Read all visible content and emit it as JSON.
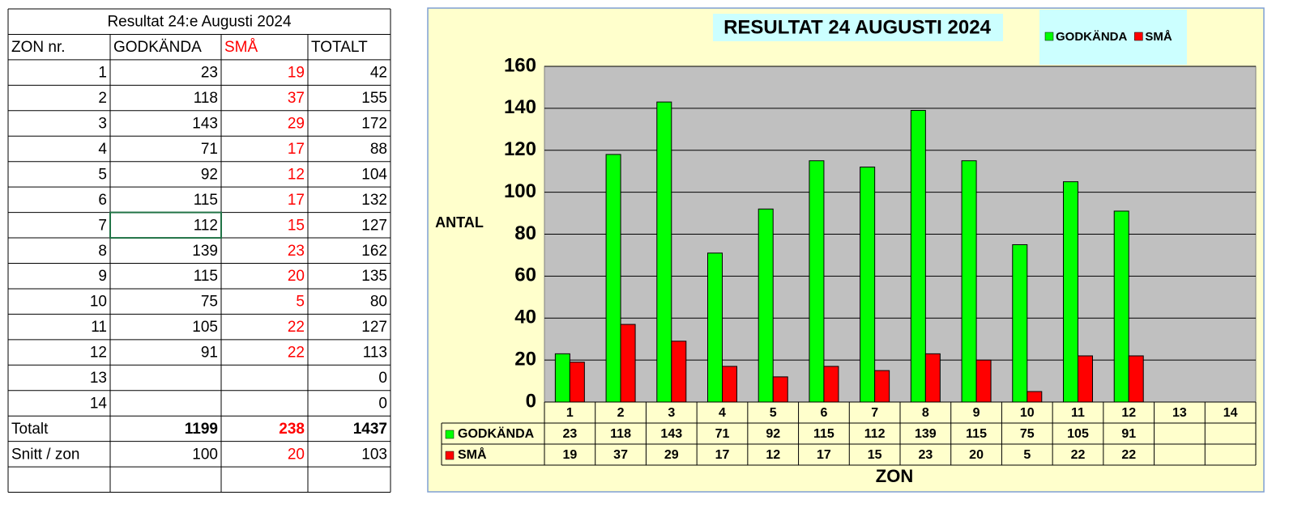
{
  "table": {
    "title": "Resultat 24:e Augusti 2024",
    "header": [
      "ZON nr.",
      "GODKÄNDA",
      "SMÅ",
      "TOTALT"
    ],
    "rows": [
      [
        1,
        23,
        19,
        42
      ],
      [
        2,
        118,
        37,
        155
      ],
      [
        3,
        143,
        29,
        172
      ],
      [
        4,
        71,
        17,
        88
      ],
      [
        5,
        92,
        12,
        104
      ],
      [
        6,
        115,
        17,
        132
      ],
      [
        7,
        112,
        15,
        127
      ],
      [
        8,
        139,
        23,
        162
      ],
      [
        9,
        115,
        20,
        135
      ],
      [
        10,
        75,
        5,
        80
      ],
      [
        11,
        105,
        22,
        127
      ],
      [
        12,
        91,
        22,
        113
      ],
      [
        13,
        null,
        null,
        0
      ],
      [
        14,
        null,
        null,
        0
      ]
    ],
    "totals": {
      "label": "Totalt",
      "values": [
        1199,
        238,
        1437
      ]
    },
    "average": {
      "label": "Snitt / zon",
      "values": [
        100,
        20,
        103
      ]
    }
  },
  "chart_data": {
    "type": "bar",
    "title": "RESULTAT 24 AUGUSTI 2024",
    "ylabel": "ANTAL",
    "xlabel": "ZON",
    "categories": [
      "1",
      "2",
      "3",
      "4",
      "5",
      "6",
      "7",
      "8",
      "9",
      "10",
      "11",
      "12",
      "13",
      "14"
    ],
    "series": [
      {
        "name": "GODKÄNDA",
        "color": "#00ff00",
        "values": [
          23,
          118,
          143,
          71,
          92,
          115,
          112,
          139,
          115,
          75,
          105,
          91,
          null,
          null
        ]
      },
      {
        "name": "SMÅ",
        "color": "#ff0000",
        "values": [
          19,
          37,
          29,
          17,
          12,
          17,
          15,
          23,
          20,
          5,
          22,
          22,
          null,
          null
        ]
      }
    ],
    "ylim": [
      0,
      160
    ],
    "yticks": [
      0,
      20,
      40,
      60,
      80,
      100,
      120,
      140,
      160
    ],
    "grid": true
  }
}
